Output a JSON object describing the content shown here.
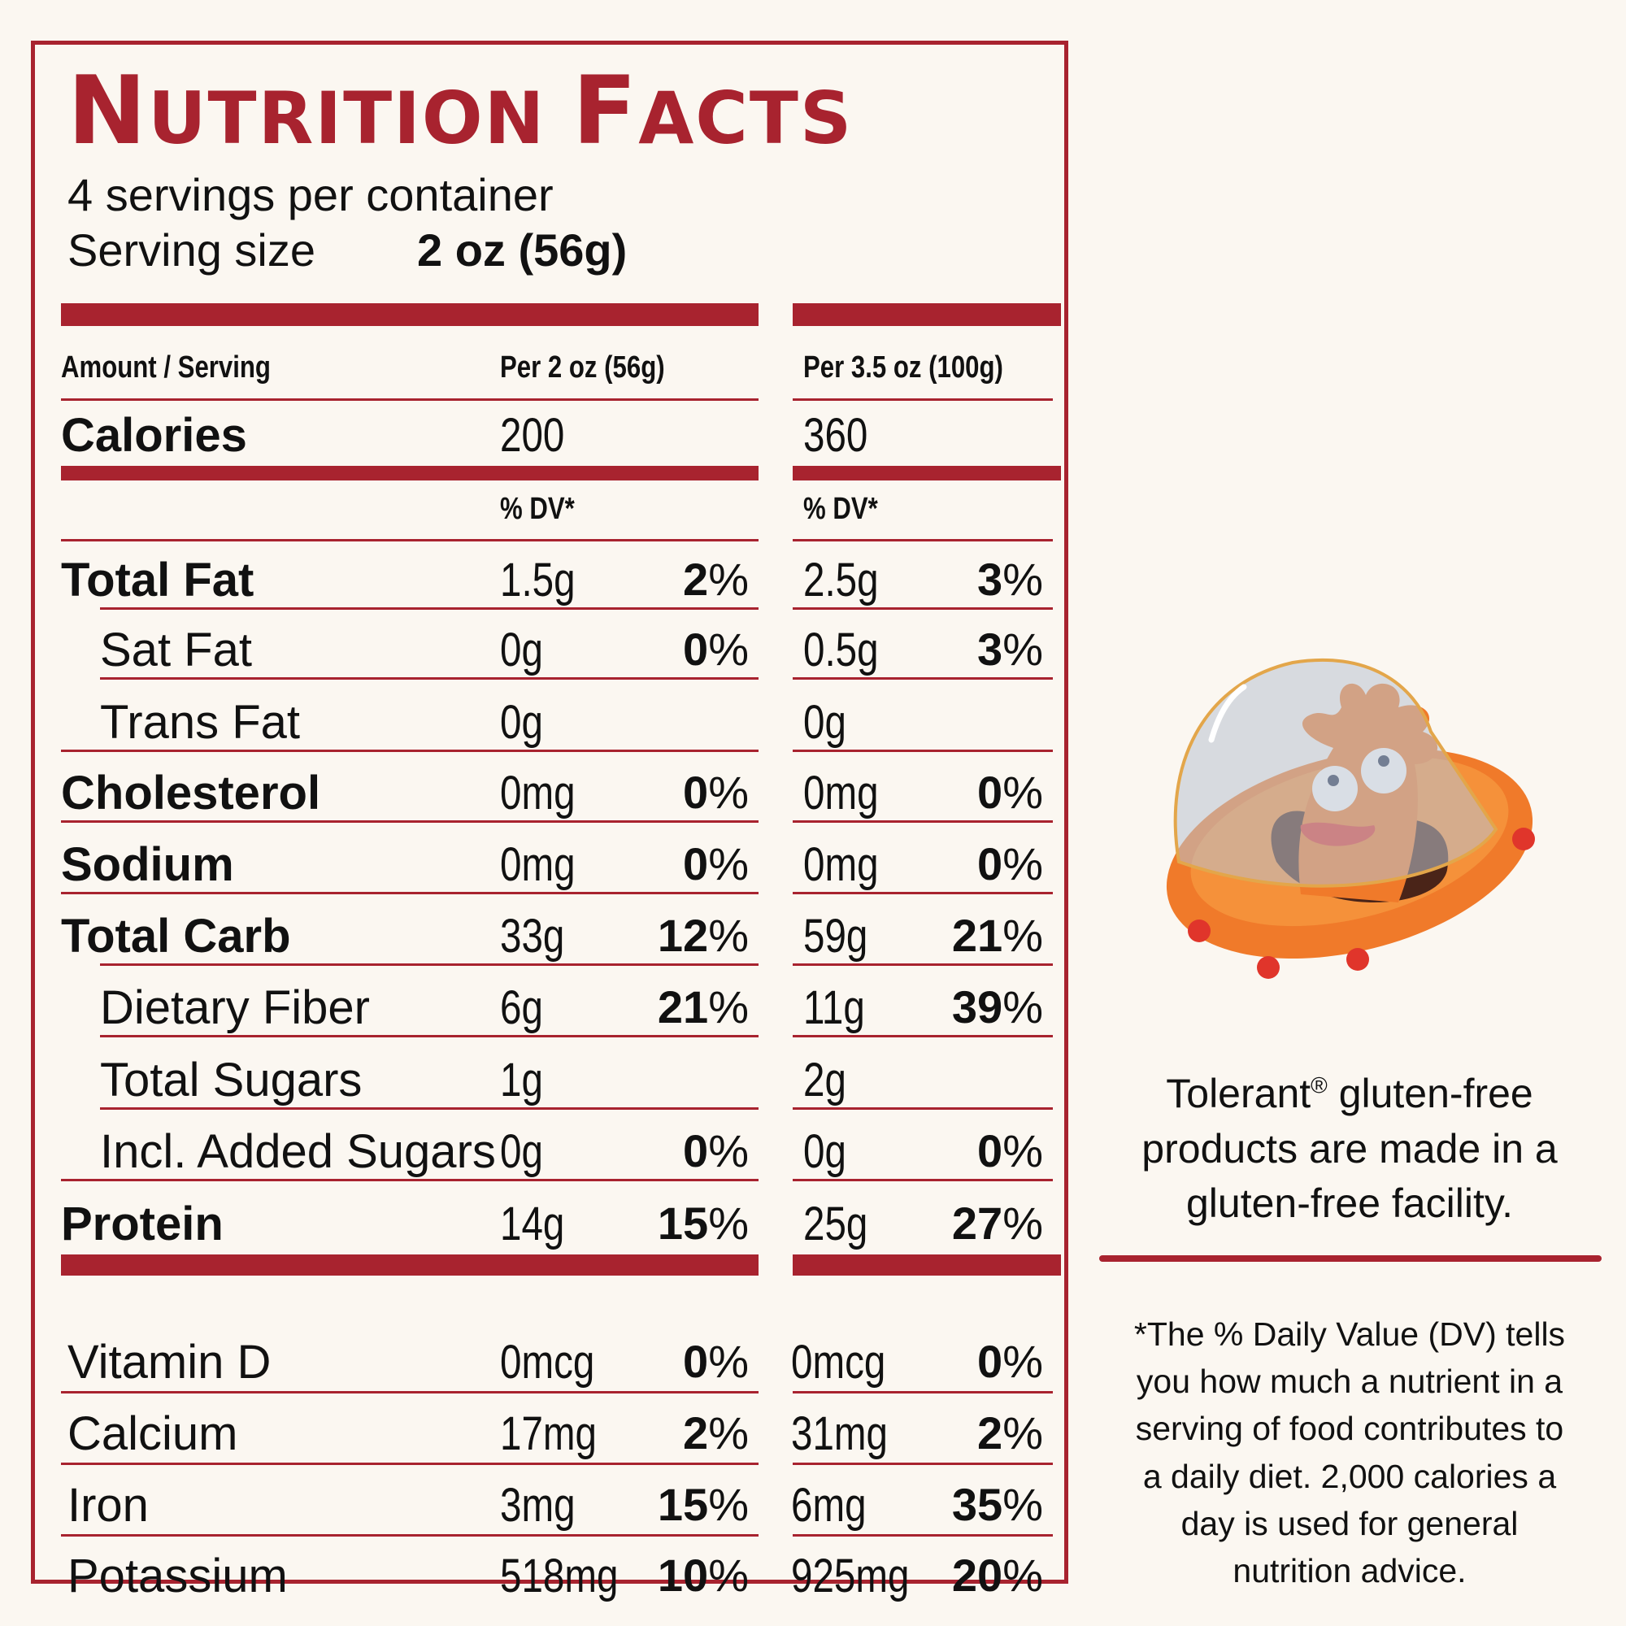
{
  "panel": {
    "title_first_letter": "N",
    "title_rest_1": "UTRITION ",
    "title_second_letter": "F",
    "title_rest_2": "ACTS",
    "servings_per_container": "4 servings per container",
    "serving_size_label": "Serving size",
    "serving_size_value": "2 oz (56g)"
  },
  "columns": {
    "amount_header": "Amount / Serving",
    "col1_header": "Per 2 oz (56g)",
    "col2_header": "Per 3.5 oz (100g)",
    "calories_label": "Calories",
    "calories_col1": "200",
    "calories_col2": "360",
    "dv_col1": "% DV*",
    "dv_col2": "% DV*"
  },
  "nutrients": [
    {
      "label": "Total Fat",
      "bold": true,
      "amt1": "1.5g",
      "pct1": "2",
      "amt2": "2.5g",
      "pct2": "3"
    },
    {
      "label": "Sat Fat",
      "bold": false,
      "amt1": "0g",
      "pct1": "0",
      "amt2": "0.5g",
      "pct2": "3"
    },
    {
      "label": "Trans Fat",
      "bold": false,
      "amt1": "0g",
      "pct1": "",
      "amt2": "0g",
      "pct2": ""
    },
    {
      "label": "Cholesterol",
      "bold": true,
      "amt1": "0mg",
      "pct1": "0",
      "amt2": "0mg",
      "pct2": "0"
    },
    {
      "label": "Sodium",
      "bold": true,
      "amt1": "0mg",
      "pct1": "0",
      "amt2": "0mg",
      "pct2": "0"
    },
    {
      "label": "Total Carb",
      "bold": true,
      "amt1": "33g",
      "pct1": "12",
      "amt2": "59g",
      "pct2": "21"
    },
    {
      "label": "Dietary Fiber",
      "bold": false,
      "amt1": "6g",
      "pct1": "21",
      "amt2": "11g",
      "pct2": "39"
    },
    {
      "label": "Total Sugars",
      "bold": false,
      "amt1": "1g",
      "pct1": "",
      "amt2": "2g",
      "pct2": ""
    },
    {
      "label": "Incl. Added Sugars",
      "bold": false,
      "amt1": "0g",
      "pct1": "0",
      "amt2": "0g",
      "pct2": "0"
    },
    {
      "label": "Protein",
      "bold": true,
      "amt1": "14g",
      "pct1": "15",
      "amt2": "25g",
      "pct2": "27"
    }
  ],
  "vitamins": [
    {
      "label": "Vitamin D",
      "amt1": "0mcg",
      "pct1": "0",
      "amt2": "0mcg",
      "pct2": "0"
    },
    {
      "label": "Calcium",
      "amt1": "17mg",
      "pct1": "2",
      "amt2": "31mg",
      "pct2": "2"
    },
    {
      "label": "Iron",
      "amt1": "3mg",
      "pct1": "15",
      "amt2": "6mg",
      "pct2": "35"
    },
    {
      "label": "Potassium",
      "amt1": "518mg",
      "pct1": "10",
      "amt2": "925mg",
      "pct2": "20"
    }
  ],
  "percent_sign": "%",
  "side": {
    "brand": "Tolerant",
    "registered": "®",
    "facility_line1_rest": " gluten-free",
    "facility_line2": "products are made in a",
    "facility_line3": "gluten-free facility.",
    "footnote_line1": "*The % Daily Value (DV) tells",
    "footnote_line2": "you how much a nutrient in a",
    "footnote_line3": "serving of food contributes to",
    "footnote_line4": "a daily diet. 2,000 calories a",
    "footnote_line5": "day is used for general",
    "footnote_line6": "nutrition advice."
  },
  "colors": {
    "accent": "#a8232f",
    "background": "#fbf7f1",
    "mascot_orange": "#f07a2a",
    "mascot_red": "#e0352b"
  }
}
